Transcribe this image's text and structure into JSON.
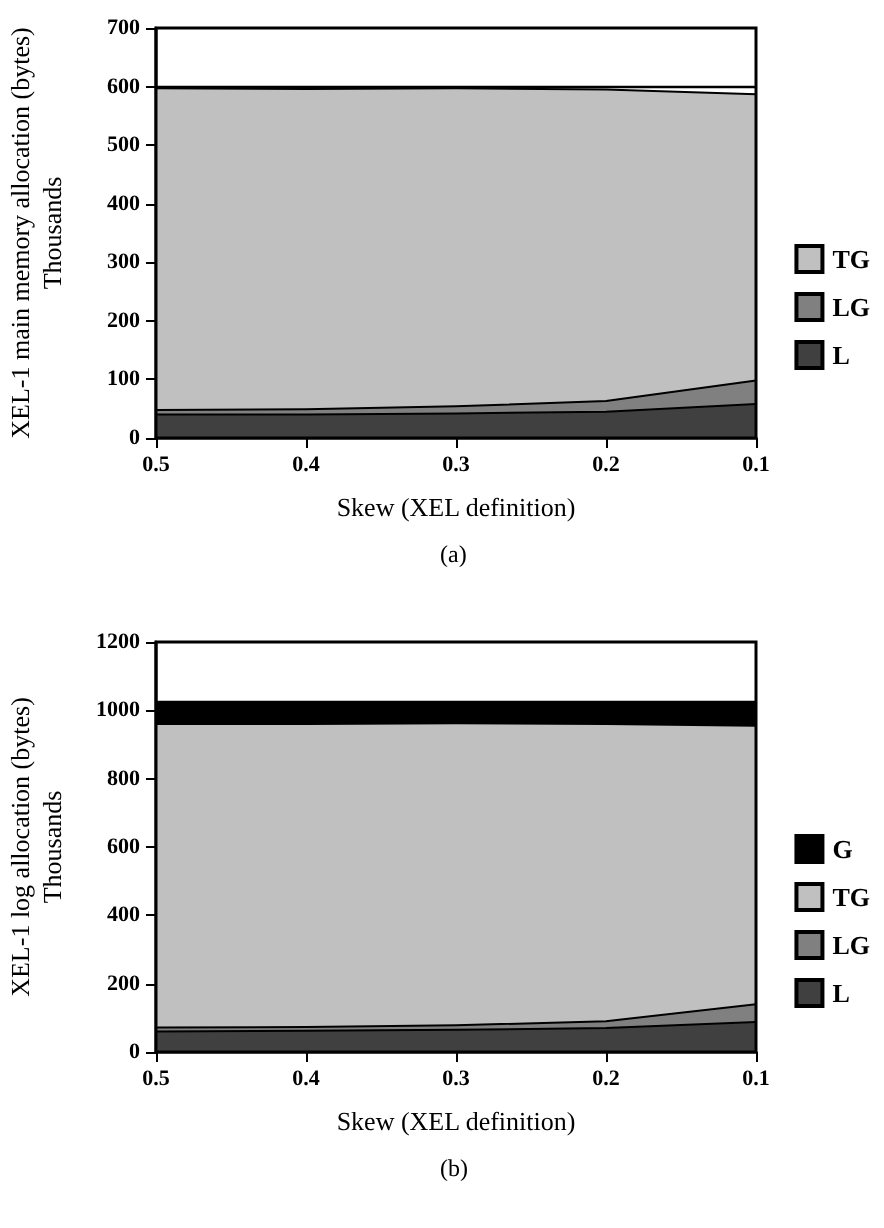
{
  "chart_data": [
    {
      "type": "area",
      "stacked": true,
      "xlabel": "Skew (XEL definition)",
      "ylabel": "XEL-1 main memory allocation (bytes)\nThousands",
      "annotations": [
        "(a)"
      ],
      "x": [
        0.5,
        0.4,
        0.3,
        0.2,
        0.1
      ],
      "xlim": [
        0.5,
        0.1
      ],
      "xticks": [
        0.5,
        0.4,
        0.3,
        0.2,
        0.1
      ],
      "ylim": [
        0,
        700
      ],
      "yticks": [
        0,
        100,
        200,
        300,
        400,
        500,
        600,
        700
      ],
      "legend": "right",
      "grid": false,
      "series": [
        {
          "name": "L",
          "color": "#404040",
          "values": [
            40,
            40,
            42,
            45,
            58
          ]
        },
        {
          "name": "LG",
          "color": "#808080",
          "values": [
            8,
            9,
            12,
            18,
            40
          ]
        },
        {
          "name": "TG",
          "color": "#c0c0c0",
          "values": [
            549,
            547,
            543,
            532,
            489
          ]
        }
      ],
      "ref_lines": [
        {
          "axis": "y",
          "value": 600,
          "color": "#000000",
          "line_style": "solid"
        }
      ]
    },
    {
      "type": "area",
      "stacked": true,
      "xlabel": "Skew (XEL definition)",
      "ylabel": "XEL-1 log allocation (bytes)\nThousands",
      "annotations": [
        "(b)"
      ],
      "x": [
        0.5,
        0.4,
        0.3,
        0.2,
        0.1
      ],
      "xlim": [
        0.5,
        0.1
      ],
      "xticks": [
        0.5,
        0.4,
        0.3,
        0.2,
        0.1
      ],
      "ylim": [
        0,
        1200
      ],
      "yticks": [
        0,
        200,
        400,
        600,
        800,
        1000,
        1200
      ],
      "legend": "right",
      "grid": false,
      "series": [
        {
          "name": "L",
          "color": "#404040",
          "values": [
            60,
            62,
            65,
            70,
            88
          ]
        },
        {
          "name": "LG",
          "color": "#808080",
          "values": [
            12,
            11,
            13,
            20,
            52
          ]
        },
        {
          "name": "TG",
          "color": "#c0c0c0",
          "values": [
            888,
            887,
            884,
            870,
            815
          ]
        },
        {
          "name": "G",
          "color": "#000000",
          "values": [
            65,
            65,
            63,
            65,
            70
          ]
        }
      ]
    }
  ]
}
